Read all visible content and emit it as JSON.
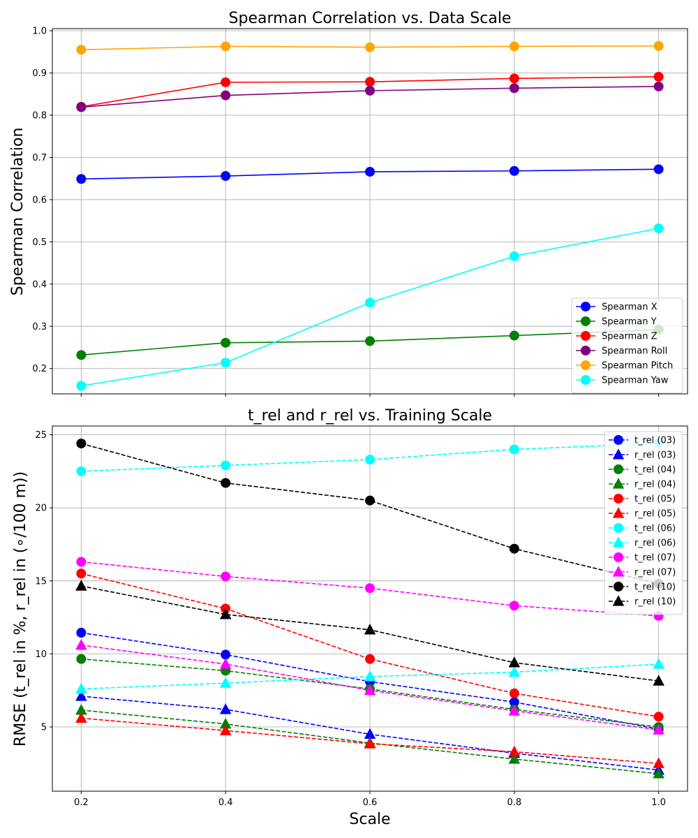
{
  "chart_data": [
    {
      "type": "line",
      "title": "Spearman Correlation vs. Data Scale",
      "xlabel": "",
      "ylabel": "Spearman Correlation",
      "x": [
        0.2,
        0.4,
        0.6,
        0.8,
        1.0
      ],
      "xlim": [
        0.16,
        1.04
      ],
      "ylim": [
        0.14,
        1.005
      ],
      "xticks": [
        "0.2",
        "0.4",
        "0.6",
        "0.8",
        "1.0"
      ],
      "show_xticklabels": false,
      "yticks": [
        "0.2",
        "0.3",
        "0.4",
        "0.5",
        "0.6",
        "0.7",
        "0.8",
        "0.9",
        "1.0"
      ],
      "grid": true,
      "legend_position": "lower-right",
      "series": [
        {
          "name": "Spearman X",
          "color": "#0000ff",
          "marker": "circle",
          "dash": false,
          "values": [
            0.649,
            0.656,
            0.666,
            0.668,
            0.672
          ]
        },
        {
          "name": "Spearman Y",
          "color": "#008000",
          "marker": "circle",
          "dash": false,
          "values": [
            0.232,
            0.261,
            0.265,
            0.278,
            0.292
          ]
        },
        {
          "name": "Spearman Z",
          "color": "#ff0000",
          "marker": "circle",
          "dash": false,
          "values": [
            0.82,
            0.878,
            0.879,
            0.887,
            0.891
          ]
        },
        {
          "name": "Spearman Roll",
          "color": "#800080",
          "marker": "circle",
          "dash": false,
          "values": [
            0.819,
            0.847,
            0.858,
            0.864,
            0.868
          ]
        },
        {
          "name": "Spearman Pitch",
          "color": "#ffa500",
          "marker": "circle",
          "dash": false,
          "values": [
            0.955,
            0.963,
            0.961,
            0.963,
            0.964
          ]
        },
        {
          "name": "Spearman Yaw",
          "color": "#00ffff",
          "marker": "circle",
          "dash": false,
          "values": [
            0.159,
            0.214,
            0.356,
            0.466,
            0.532
          ]
        }
      ]
    },
    {
      "type": "line",
      "title": "t_rel and r_rel vs. Training Scale",
      "xlabel": "Scale",
      "ylabel": "RMSE (t_rel in %, r_rel in (∘/100 m))",
      "x": [
        0.2,
        0.4,
        0.6,
        0.8,
        1.0
      ],
      "xlim": [
        0.16,
        1.04
      ],
      "ylim": [
        0.6,
        25.6
      ],
      "xticks": [
        "0.2",
        "0.4",
        "0.6",
        "0.8",
        "1.0"
      ],
      "show_xticklabels": true,
      "yticks": [
        "5",
        "10",
        "15",
        "20",
        "25"
      ],
      "grid": true,
      "legend_position": "upper-right",
      "series": [
        {
          "name": "t_rel (03)",
          "color": "#0000ff",
          "marker": "circle",
          "dash": true,
          "values": [
            11.45,
            9.95,
            8.1,
            6.7,
            4.85
          ]
        },
        {
          "name": "r_rel (03)",
          "color": "#0000ff",
          "marker": "triangle",
          "dash": true,
          "values": [
            7.1,
            6.2,
            4.5,
            3.2,
            2.05
          ]
        },
        {
          "name": "t_rel (04)",
          "color": "#008000",
          "marker": "circle",
          "dash": true,
          "values": [
            9.65,
            8.85,
            7.6,
            6.2,
            5.0
          ]
        },
        {
          "name": "r_rel (04)",
          "color": "#008000",
          "marker": "triangle",
          "dash": true,
          "values": [
            6.15,
            5.2,
            3.9,
            2.8,
            1.8
          ]
        },
        {
          "name": "t_rel (05)",
          "color": "#ff0000",
          "marker": "circle",
          "dash": true,
          "values": [
            15.5,
            13.1,
            9.65,
            7.3,
            5.7
          ]
        },
        {
          "name": "r_rel (05)",
          "color": "#ff0000",
          "marker": "triangle",
          "dash": true,
          "values": [
            5.6,
            4.75,
            3.85,
            3.3,
            2.5
          ]
        },
        {
          "name": "t_rel (06)",
          "color": "#00ffff",
          "marker": "circle",
          "dash": true,
          "values": [
            22.5,
            22.9,
            23.3,
            24.0,
            24.4
          ]
        },
        {
          "name": "r_rel (06)",
          "color": "#00ffff",
          "marker": "triangle",
          "dash": true,
          "values": [
            7.6,
            8.0,
            8.45,
            8.75,
            9.3
          ]
        },
        {
          "name": "t_rel (07)",
          "color": "#ff00ff",
          "marker": "circle",
          "dash": true,
          "values": [
            16.3,
            15.3,
            14.5,
            13.3,
            12.6
          ]
        },
        {
          "name": "r_rel (07)",
          "color": "#ff00ff",
          "marker": "triangle",
          "dash": true,
          "values": [
            10.6,
            9.3,
            7.5,
            6.1,
            4.8
          ]
        },
        {
          "name": "t_rel (10)",
          "color": "#000000",
          "marker": "circle",
          "dash": true,
          "values": [
            24.4,
            21.7,
            20.5,
            17.2,
            14.8
          ]
        },
        {
          "name": "r_rel (10)",
          "color": "#000000",
          "marker": "triangle",
          "dash": true,
          "values": [
            14.65,
            12.7,
            11.65,
            9.4,
            8.15
          ]
        }
      ]
    }
  ]
}
